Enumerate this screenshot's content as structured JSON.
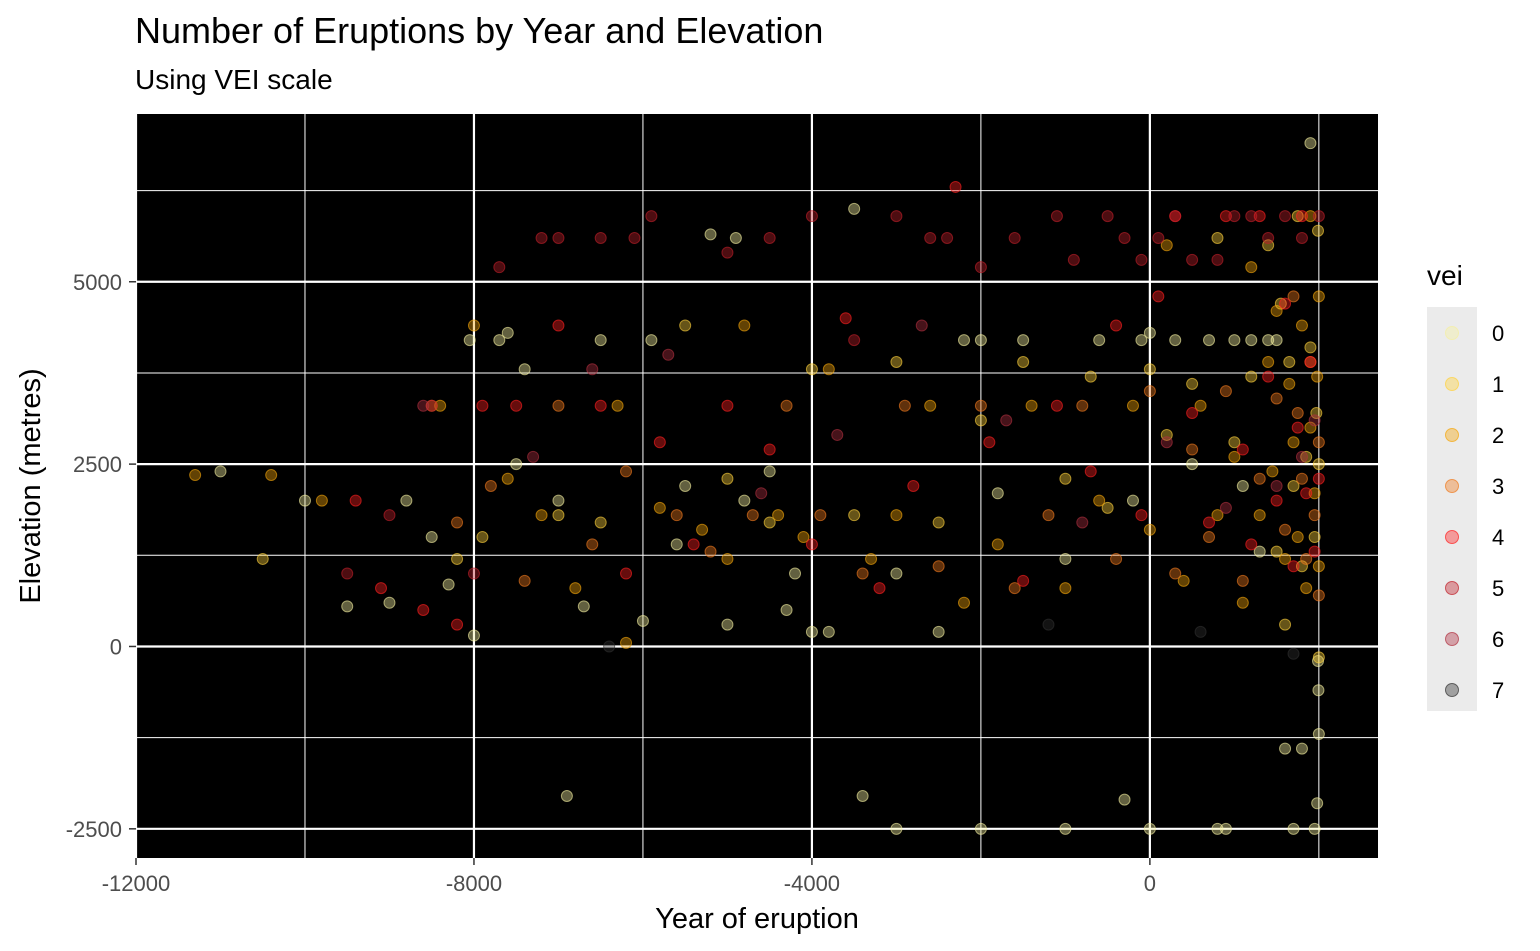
{
  "chart_data": {
    "type": "scatter",
    "title": "Number of Eruptions by Year and Elevation",
    "subtitle": "Using VEI scale",
    "xlabel": "Year of eruption",
    "ylabel": "Elevation (metres)",
    "xlim": [
      -12000,
      2700
    ],
    "ylim": [
      -2900,
      7300
    ],
    "x_ticks": [
      -12000,
      -8000,
      -4000,
      0
    ],
    "x_tick_labels": [
      "-12000",
      "-8000",
      "-4000",
      "0"
    ],
    "y_ticks": [
      -2500,
      0,
      2500,
      5000
    ],
    "y_tick_labels": [
      "-2500",
      "0",
      "2500",
      "5000"
    ],
    "x_minor_gridlines": [
      -10000,
      -6000,
      -2000,
      2000
    ],
    "y_minor_gridlines": [
      -1250,
      1250,
      3750,
      6250
    ],
    "panel_background": "#000000",
    "grid_color": "#ffffff",
    "point_opacity": 0.4,
    "legend": {
      "title": "vei",
      "position": "right",
      "entries": [
        {
          "label": "0",
          "color": "#f5f0a0"
        },
        {
          "label": "1",
          "color": "#ffd23c"
        },
        {
          "label": "2",
          "color": "#f5a60a"
        },
        {
          "label": "3",
          "color": "#f07a1e"
        },
        {
          "label": "4",
          "color": "#ff2020"
        },
        {
          "label": "5",
          "color": "#c0202a"
        },
        {
          "label": "6",
          "color": "#b03040"
        },
        {
          "label": "7",
          "color": "#303030"
        }
      ]
    },
    "series": [
      {
        "vei": "0",
        "points": [
          [
            -11000,
            2400
          ],
          [
            -10000,
            2000
          ],
          [
            -9500,
            550
          ],
          [
            -9000,
            600
          ],
          [
            -8800,
            2000
          ],
          [
            -8500,
            1500
          ],
          [
            -8300,
            850
          ],
          [
            -8050,
            4200
          ],
          [
            -8000,
            150
          ],
          [
            -7700,
            4200
          ],
          [
            -7600,
            4300
          ],
          [
            -7500,
            2500
          ],
          [
            -7400,
            3800
          ],
          [
            -7000,
            2000
          ],
          [
            -6900,
            -2050
          ],
          [
            -6700,
            550
          ],
          [
            -6500,
            4200
          ],
          [
            -6000,
            350
          ],
          [
            -5900,
            4200
          ],
          [
            -5600,
            1400
          ],
          [
            -5500,
            2200
          ],
          [
            -5200,
            5650
          ],
          [
            -5000,
            300
          ],
          [
            -4900,
            5600
          ],
          [
            -4800,
            2000
          ],
          [
            -4500,
            2400
          ],
          [
            -4300,
            500
          ],
          [
            -4200,
            1000
          ],
          [
            -4000,
            200
          ],
          [
            -3800,
            200
          ],
          [
            -3500,
            6000
          ],
          [
            -3400,
            -2050
          ],
          [
            -3000,
            1000
          ],
          [
            -3000,
            -2500
          ],
          [
            -2500,
            200
          ],
          [
            -2200,
            4200
          ],
          [
            -2000,
            -2500
          ],
          [
            -2000,
            4200
          ],
          [
            -1800,
            2100
          ],
          [
            -1500,
            4200
          ],
          [
            -1000,
            -2500
          ],
          [
            -1000,
            1200
          ],
          [
            -600,
            4200
          ],
          [
            -300,
            -2100
          ],
          [
            -200,
            2000
          ],
          [
            -100,
            4200
          ],
          [
            0,
            -2500
          ],
          [
            0,
            4300
          ],
          [
            300,
            4200
          ],
          [
            500,
            2500
          ],
          [
            700,
            4200
          ],
          [
            800,
            -2500
          ],
          [
            900,
            -2500
          ],
          [
            1000,
            4200
          ],
          [
            1100,
            2200
          ],
          [
            1200,
            4200
          ],
          [
            1300,
            1300
          ],
          [
            1400,
            4200
          ],
          [
            1500,
            4200
          ],
          [
            1600,
            -1400
          ],
          [
            1700,
            -2500
          ],
          [
            1800,
            -1400
          ],
          [
            1900,
            6900
          ],
          [
            1950,
            -2500
          ],
          [
            1980,
            -2150
          ],
          [
            1990,
            -200
          ],
          [
            1995,
            -600
          ],
          [
            2000,
            -1200
          ]
        ]
      },
      {
        "vei": "1",
        "points": [
          [
            -10500,
            1200
          ],
          [
            -8200,
            1200
          ],
          [
            -7900,
            1500
          ],
          [
            -7000,
            1800
          ],
          [
            -6500,
            1700
          ],
          [
            -5500,
            4400
          ],
          [
            -5000,
            2300
          ],
          [
            -4500,
            1700
          ],
          [
            -4000,
            3800
          ],
          [
            -3500,
            1800
          ],
          [
            -3000,
            3900
          ],
          [
            -2500,
            1700
          ],
          [
            -2000,
            3100
          ],
          [
            -1500,
            3900
          ],
          [
            -1000,
            2300
          ],
          [
            -700,
            3700
          ],
          [
            -500,
            1900
          ],
          [
            0,
            3800
          ],
          [
            200,
            2900
          ],
          [
            500,
            3600
          ],
          [
            800,
            5600
          ],
          [
            1000,
            2800
          ],
          [
            1200,
            3700
          ],
          [
            1400,
            5500
          ],
          [
            1500,
            1300
          ],
          [
            1550,
            4700
          ],
          [
            1600,
            300
          ],
          [
            1650,
            3900
          ],
          [
            1700,
            2200
          ],
          [
            1750,
            5900
          ],
          [
            1800,
            1100
          ],
          [
            1850,
            2600
          ],
          [
            1900,
            4100
          ],
          [
            1950,
            1500
          ],
          [
            1970,
            3200
          ],
          [
            1990,
            5700
          ],
          [
            2000,
            -150
          ],
          [
            2000,
            2500
          ]
        ]
      },
      {
        "vei": "2",
        "points": [
          [
            -11300,
            2350
          ],
          [
            -10400,
            2350
          ],
          [
            -9800,
            2000
          ],
          [
            -8400,
            3300
          ],
          [
            -8000,
            4400
          ],
          [
            -7600,
            2300
          ],
          [
            -7200,
            1800
          ],
          [
            -6800,
            800
          ],
          [
            -6300,
            3300
          ],
          [
            -6200,
            50
          ],
          [
            -5800,
            1900
          ],
          [
            -5300,
            1600
          ],
          [
            -5000,
            1200
          ],
          [
            -4800,
            4400
          ],
          [
            -4400,
            1800
          ],
          [
            -4100,
            1500
          ],
          [
            -3800,
            3800
          ],
          [
            -3300,
            1200
          ],
          [
            -3000,
            1800
          ],
          [
            -2600,
            3300
          ],
          [
            -2200,
            600
          ],
          [
            -1800,
            1400
          ],
          [
            -1400,
            3300
          ],
          [
            -1000,
            800
          ],
          [
            -600,
            2000
          ],
          [
            -200,
            3300
          ],
          [
            0,
            1600
          ],
          [
            200,
            5500
          ],
          [
            400,
            900
          ],
          [
            600,
            3300
          ],
          [
            800,
            1800
          ],
          [
            1000,
            2600
          ],
          [
            1100,
            600
          ],
          [
            1200,
            5200
          ],
          [
            1300,
            1800
          ],
          [
            1400,
            3900
          ],
          [
            1450,
            2400
          ],
          [
            1500,
            4600
          ],
          [
            1600,
            1200
          ],
          [
            1650,
            3600
          ],
          [
            1700,
            2800
          ],
          [
            1750,
            1500
          ],
          [
            1800,
            4400
          ],
          [
            1850,
            800
          ],
          [
            1900,
            5900
          ],
          [
            1900,
            3000
          ],
          [
            1950,
            2100
          ],
          [
            1980,
            3700
          ],
          [
            2000,
            4800
          ],
          [
            2000,
            1100
          ]
        ]
      },
      {
        "vei": "3",
        "points": [
          [
            -8500,
            3300
          ],
          [
            -8200,
            1700
          ],
          [
            -7800,
            2200
          ],
          [
            -7400,
            900
          ],
          [
            -7000,
            3300
          ],
          [
            -6600,
            1400
          ],
          [
            -6200,
            2400
          ],
          [
            -5600,
            1800
          ],
          [
            -5200,
            1300
          ],
          [
            -4700,
            1800
          ],
          [
            -4300,
            3300
          ],
          [
            -3900,
            1800
          ],
          [
            -3400,
            1000
          ],
          [
            -2900,
            3300
          ],
          [
            -2500,
            1100
          ],
          [
            -2000,
            3300
          ],
          [
            -1600,
            800
          ],
          [
            -1200,
            1800
          ],
          [
            -800,
            3300
          ],
          [
            -400,
            1200
          ],
          [
            0,
            3500
          ],
          [
            300,
            1000
          ],
          [
            500,
            2700
          ],
          [
            700,
            1500
          ],
          [
            900,
            3500
          ],
          [
            1100,
            900
          ],
          [
            1300,
            2300
          ],
          [
            1500,
            3400
          ],
          [
            1600,
            1600
          ],
          [
            1700,
            4800
          ],
          [
            1750,
            3200
          ],
          [
            1800,
            2300
          ],
          [
            1850,
            1200
          ],
          [
            1900,
            3900
          ],
          [
            1950,
            1800
          ],
          [
            2000,
            2800
          ],
          [
            2000,
            700
          ]
        ]
      },
      {
        "vei": "4",
        "points": [
          [
            -9400,
            2000
          ],
          [
            -9100,
            800
          ],
          [
            -8600,
            500
          ],
          [
            -8200,
            300
          ],
          [
            -7900,
            3300
          ],
          [
            -7500,
            3300
          ],
          [
            -7000,
            4400
          ],
          [
            -6500,
            3300
          ],
          [
            -6200,
            1000
          ],
          [
            -5800,
            2800
          ],
          [
            -5400,
            1400
          ],
          [
            -5000,
            3300
          ],
          [
            -4500,
            2700
          ],
          [
            -4000,
            1400
          ],
          [
            -3600,
            4500
          ],
          [
            -3200,
            800
          ],
          [
            -2800,
            2200
          ],
          [
            -2300,
            6300
          ],
          [
            -1900,
            2800
          ],
          [
            -1500,
            900
          ],
          [
            -1100,
            3300
          ],
          [
            -700,
            2400
          ],
          [
            -400,
            4400
          ],
          [
            -100,
            1800
          ],
          [
            100,
            4800
          ],
          [
            300,
            5900
          ],
          [
            500,
            3200
          ],
          [
            700,
            1700
          ],
          [
            900,
            5900
          ],
          [
            1100,
            2700
          ],
          [
            1200,
            1400
          ],
          [
            1300,
            5900
          ],
          [
            1400,
            3700
          ],
          [
            1500,
            2000
          ],
          [
            1600,
            4700
          ],
          [
            1700,
            1100
          ],
          [
            1750,
            3000
          ],
          [
            1800,
            5900
          ],
          [
            1850,
            2100
          ],
          [
            1900,
            3900
          ],
          [
            1950,
            1300
          ],
          [
            2000,
            2300
          ]
        ]
      },
      {
        "vei": "5",
        "points": [
          [
            -9500,
            1000
          ],
          [
            -9000,
            1800
          ],
          [
            -8500,
            3300
          ],
          [
            -8000,
            1000
          ],
          [
            -7700,
            5200
          ],
          [
            -7200,
            5600
          ],
          [
            -7000,
            5600
          ],
          [
            -6500,
            5600
          ],
          [
            -6100,
            5600
          ],
          [
            -5900,
            5900
          ],
          [
            -5000,
            5400
          ],
          [
            -4500,
            5600
          ],
          [
            -4000,
            5900
          ],
          [
            -3500,
            4200
          ],
          [
            -3000,
            5900
          ],
          [
            -2600,
            5600
          ],
          [
            -2400,
            5600
          ],
          [
            -2000,
            5200
          ],
          [
            -1600,
            5600
          ],
          [
            -1100,
            5900
          ],
          [
            -900,
            5300
          ],
          [
            -500,
            5900
          ],
          [
            -300,
            5600
          ],
          [
            -100,
            5300
          ],
          [
            100,
            5600
          ],
          [
            300,
            5900
          ],
          [
            500,
            5300
          ],
          [
            800,
            5300
          ],
          [
            1000,
            5900
          ],
          [
            1200,
            5900
          ],
          [
            1400,
            5600
          ],
          [
            1600,
            5900
          ],
          [
            1800,
            5600
          ],
          [
            2000,
            5900
          ]
        ]
      },
      {
        "vei": "6",
        "points": [
          [
            -8600,
            3300
          ],
          [
            -7300,
            2600
          ],
          [
            -6600,
            3800
          ],
          [
            -5700,
            4000
          ],
          [
            -4600,
            2100
          ],
          [
            -3700,
            2900
          ],
          [
            -2700,
            4400
          ],
          [
            -1700,
            3100
          ],
          [
            -800,
            1700
          ],
          [
            200,
            2800
          ],
          [
            900,
            1900
          ],
          [
            1500,
            2200
          ],
          [
            1800,
            2600
          ],
          [
            1950,
            3100
          ]
        ]
      },
      {
        "vei": "7",
        "points": [
          [
            -6400,
            0
          ],
          [
            -1200,
            300
          ],
          [
            600,
            200
          ],
          [
            1700,
            -100
          ]
        ]
      }
    ]
  }
}
